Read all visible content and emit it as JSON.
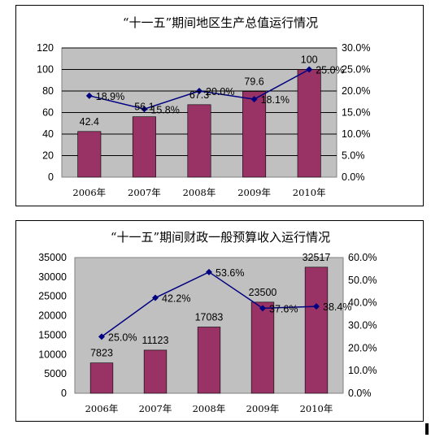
{
  "chart_data": [
    {
      "type": "bar",
      "title": "“十一五”期间地区生产总值运行情况",
      "categories": [
        "2006年",
        "2007年",
        "2008年",
        "2009年",
        "2010年"
      ],
      "series": [
        {
          "type": "bar",
          "axis": "left",
          "color": "#993366",
          "values": [
            42.4,
            56.1,
            67.3,
            79.6,
            100
          ],
          "labels": [
            "42.4",
            "56.1",
            "67.3",
            "79.6",
            "100"
          ]
        },
        {
          "type": "line",
          "axis": "right",
          "color": "#000080",
          "values": [
            18.9,
            15.8,
            20.0,
            18.1,
            25.0
          ],
          "labels": [
            "18.9%",
            "15.8%",
            "20.0%",
            "18.1%",
            "25.0%"
          ]
        }
      ],
      "ylim": [
        0,
        120
      ],
      "yticks": [
        "0",
        "20",
        "40",
        "60",
        "80",
        "100",
        "120"
      ],
      "y2lim": [
        0,
        30
      ],
      "y2ticks": [
        "0.0%",
        "5.0%",
        "10.0%",
        "15.0%",
        "20.0%",
        "25.0%",
        "30.0%"
      ],
      "plot_background": "#c0c0c0",
      "grid": true
    },
    {
      "type": "bar",
      "title": "“十一五”期间财政一般预算收入运行情况",
      "categories": [
        "2006年",
        "2007年",
        "2008年",
        "2009年",
        "2010年"
      ],
      "series": [
        {
          "type": "bar",
          "axis": "left",
          "color": "#993366",
          "values": [
            7823,
            11123,
            17083,
            23500,
            32517
          ],
          "labels": [
            "7823",
            "11123",
            "17083",
            "23500",
            "32517"
          ]
        },
        {
          "type": "line",
          "axis": "right",
          "color": "#000080",
          "values": [
            25.0,
            42.2,
            53.6,
            37.6,
            38.4
          ],
          "labels": [
            "25.0%",
            "42.2%",
            "53.6%",
            "37.6%",
            "38.4%"
          ]
        }
      ],
      "ylim": [
        0,
        35000
      ],
      "yticks": [
        "0",
        "5000",
        "10000",
        "15000",
        "20000",
        "25000",
        "30000",
        "35000"
      ],
      "y2lim": [
        0,
        60
      ],
      "y2ticks": [
        "0.0%",
        "10.0%",
        "20.0%",
        "30.0%",
        "40.0%",
        "50.0%",
        "60.0%"
      ],
      "plot_background": "#c0c0c0",
      "grid": false
    }
  ]
}
